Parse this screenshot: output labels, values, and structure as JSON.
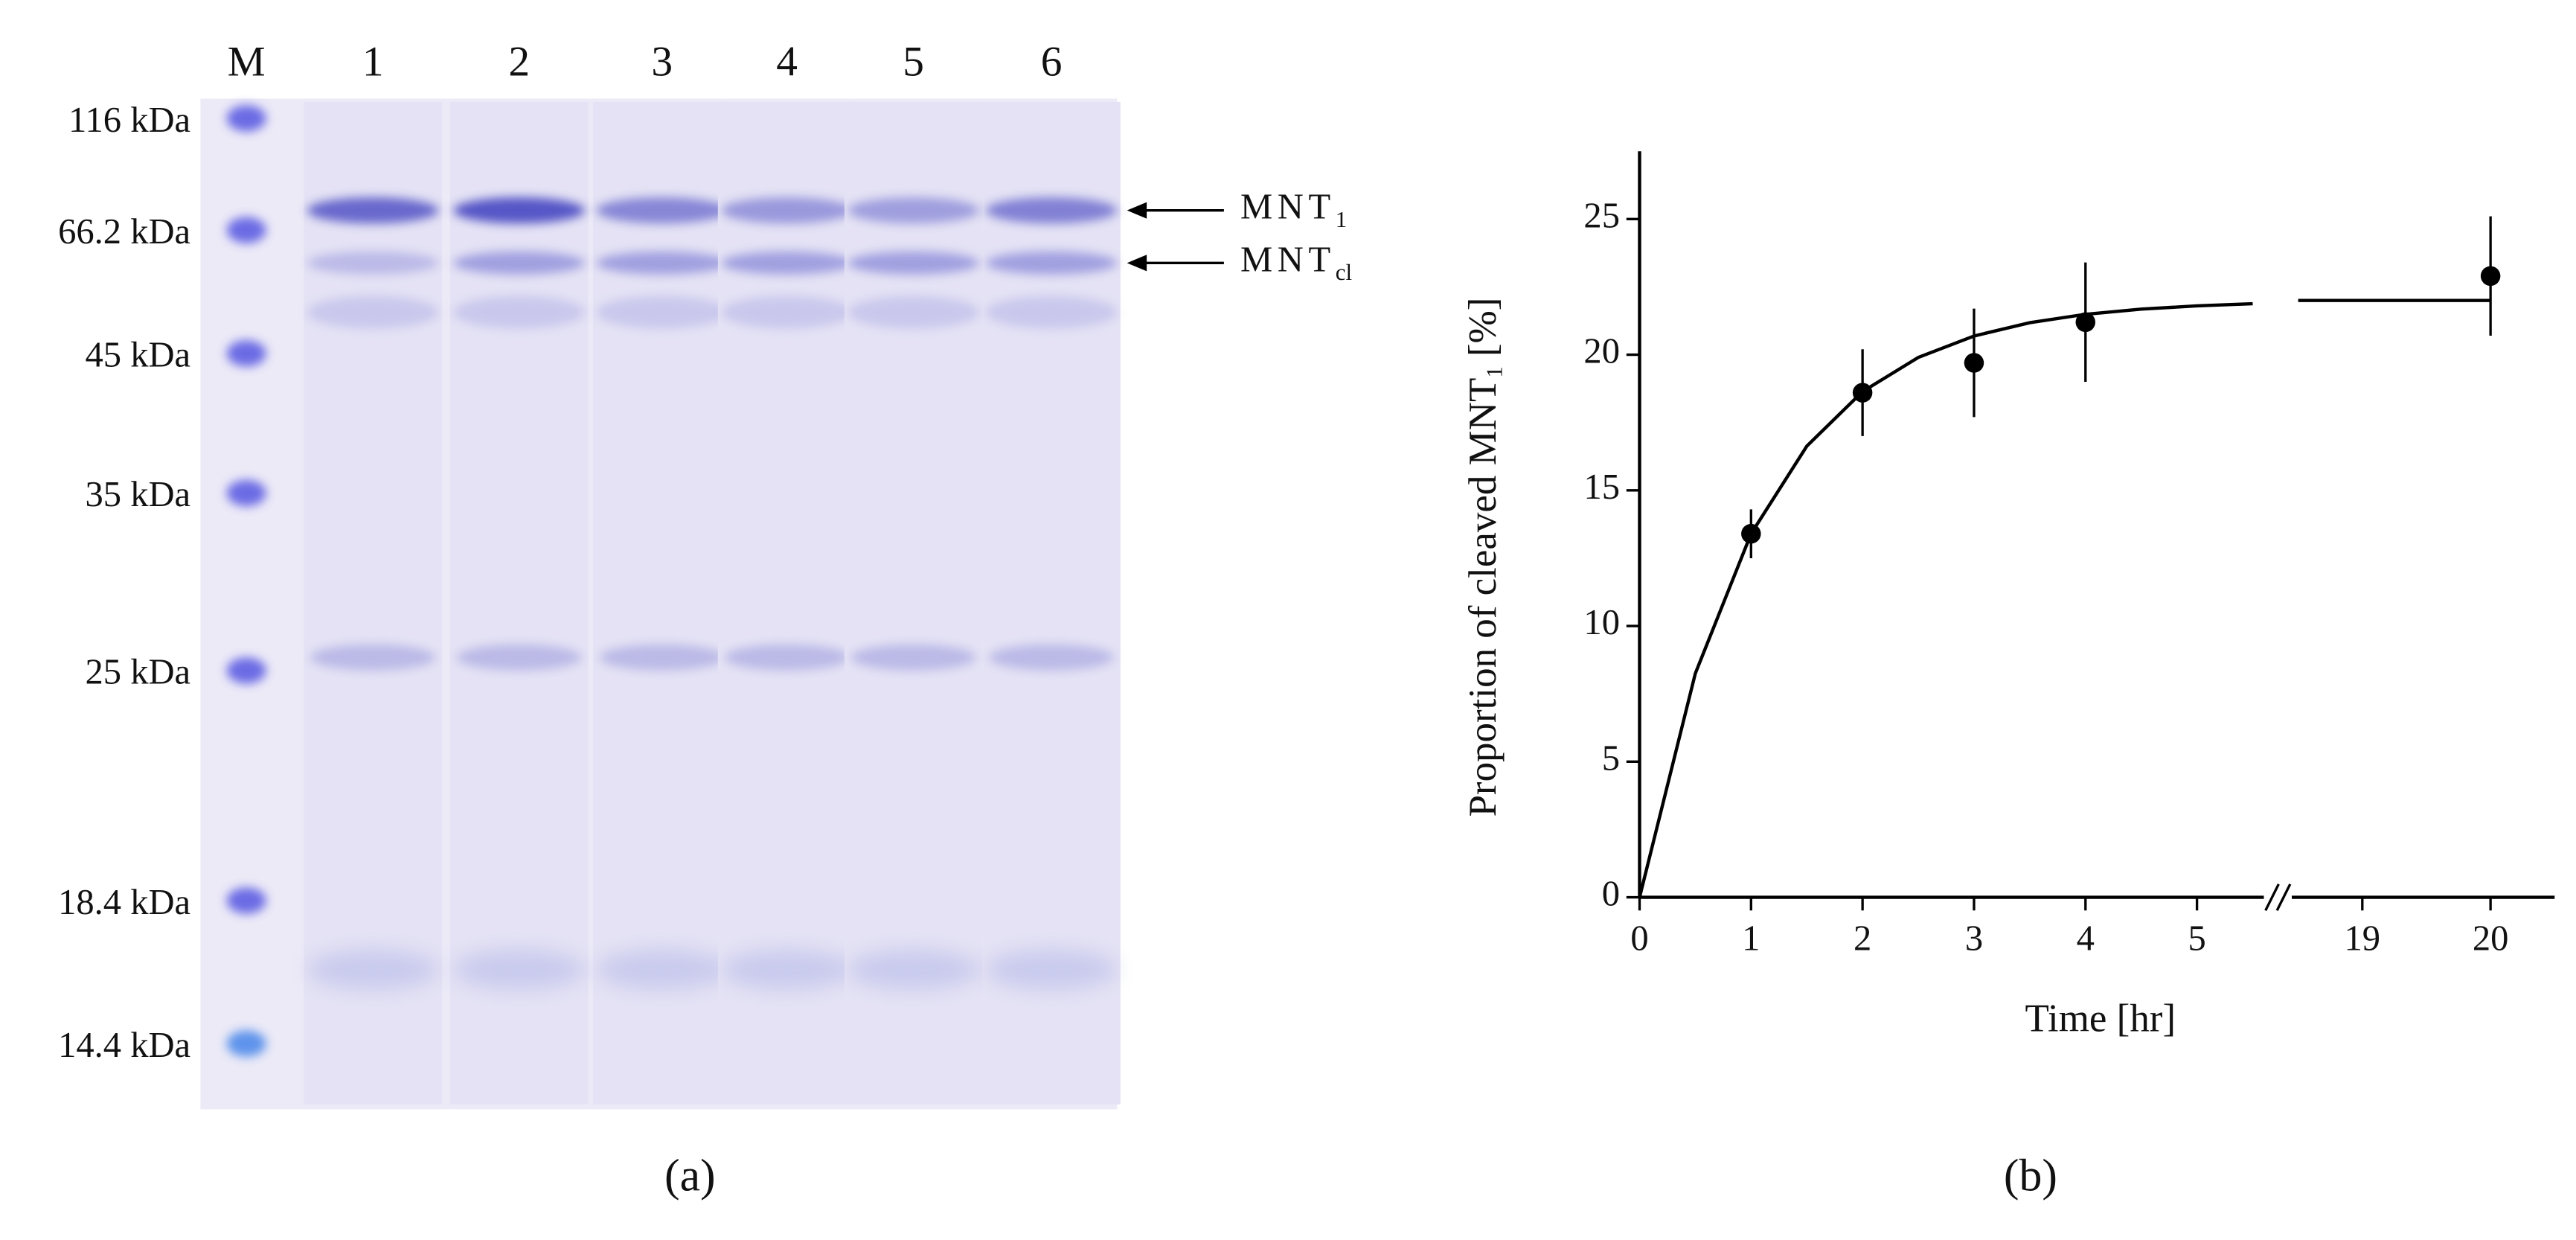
{
  "gel": {
    "lanes": [
      "M",
      "1",
      "2",
      "3",
      "4",
      "5",
      "6"
    ],
    "markers": [
      "116 kDa",
      "66.2 kDa",
      "45 kDa",
      "35 kDa",
      "25 kDa",
      "18.4 kDa",
      "14.4 kDa"
    ],
    "arrows": [
      {
        "label": "MNT",
        "sub": "1"
      },
      {
        "label": "MNT",
        "sub": "cl"
      }
    ],
    "caption": "(a)"
  },
  "chart_data": {
    "type": "scatter",
    "caption": "(b)",
    "xlabel": "Time [hr]",
    "ylabel": "Proportion of cleaved MNT",
    "ylabel_sub": "1",
    "ylabel_unit": "[%]",
    "xlim": [
      0,
      20.5
    ],
    "xbreak": [
      5.6,
      18.45
    ],
    "xticks": [
      0,
      1,
      2,
      3,
      4,
      5,
      19,
      20
    ],
    "ylim": [
      0,
      27.5
    ],
    "yticks": [
      0,
      5,
      10,
      15,
      20,
      25
    ],
    "grid": false,
    "series": [
      {
        "style": "line",
        "color": "#000000",
        "x": [
          0,
          0.5,
          1,
          1.5,
          2,
          2.5,
          3,
          3.5,
          4,
          4.5,
          5,
          5.5,
          18.5,
          20
        ],
        "values": [
          0,
          8.25,
          13.4,
          16.63,
          18.64,
          19.9,
          20.69,
          21.18,
          21.49,
          21.68,
          21.8,
          21.88,
          22,
          22
        ]
      },
      {
        "style": "markers",
        "color": "#000000",
        "x": [
          1,
          2,
          3,
          4,
          20
        ],
        "values": [
          13.4,
          18.6,
          19.7,
          21.2,
          22.9
        ],
        "errors": [
          0.9,
          1.6,
          2.0,
          2.2,
          2.2
        ]
      }
    ]
  }
}
